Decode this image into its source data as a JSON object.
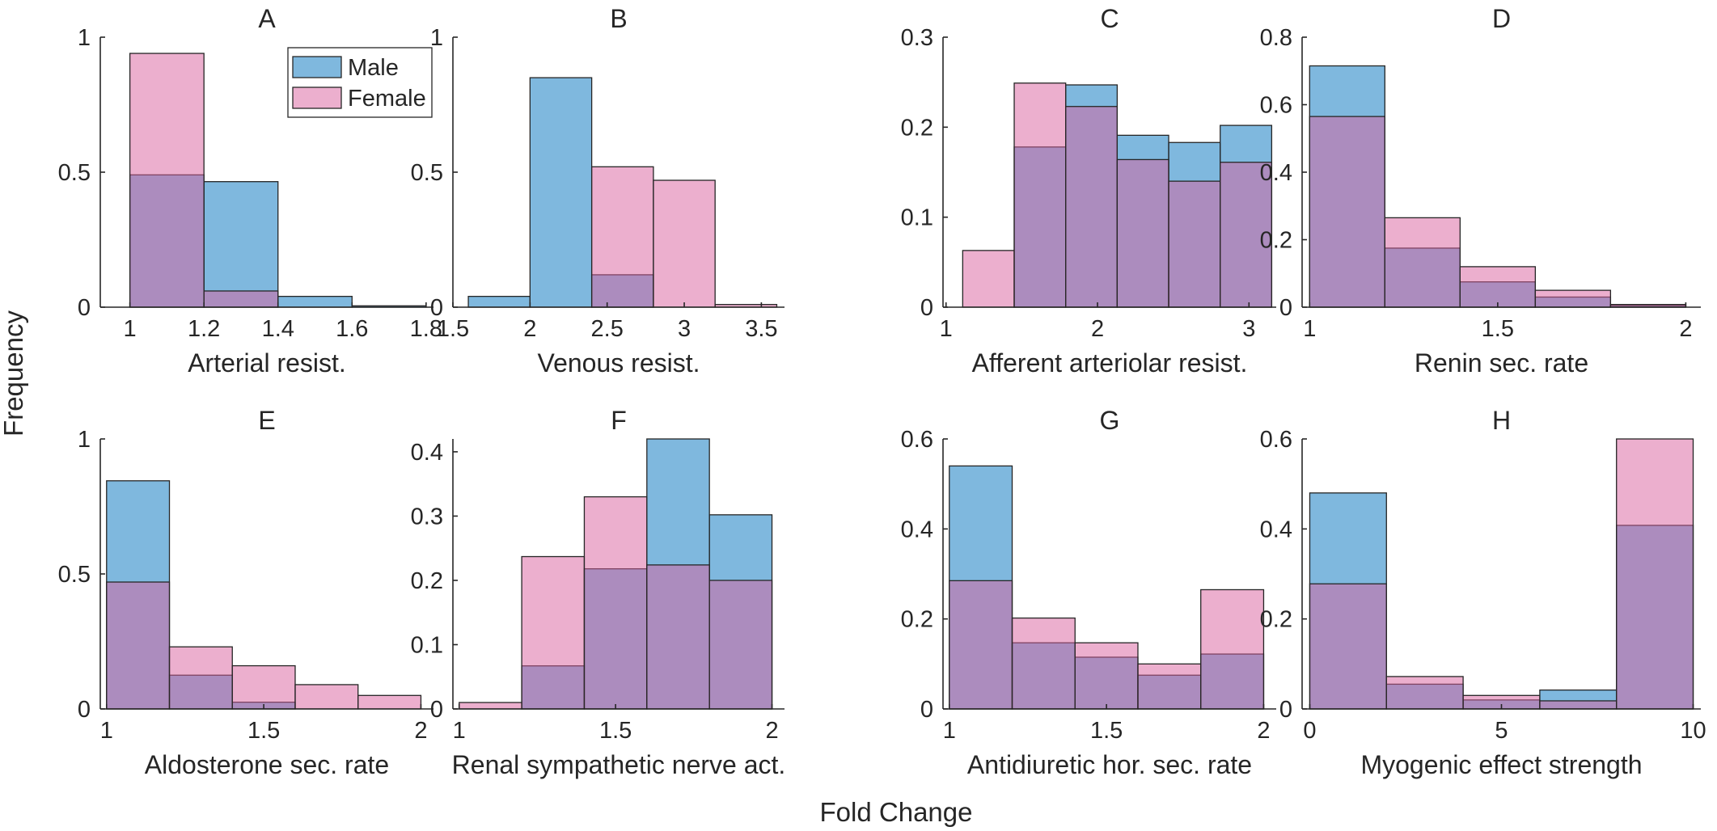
{
  "figure": {
    "ylabel": "Frequency",
    "xlabel": "Fold Change",
    "colors": {
      "Male": "#0072BD",
      "Female": "#D95F9E",
      "alpha": 0.5
    },
    "legend": {
      "entries": [
        "Male",
        "Female"
      ],
      "placement": "top-right of panel A"
    }
  },
  "chart_data": [
    {
      "type": "bar",
      "panel": "A",
      "xlabel": "Arterial resist.",
      "xlim": [
        0.92,
        1.82
      ],
      "ylim": [
        0,
        1
      ],
      "xticks": [
        1,
        1.2,
        1.4,
        1.6,
        1.8
      ],
      "xtick_labels": [
        "1",
        "1.2",
        "1.4",
        "1.6",
        "1.8"
      ],
      "yticks": [
        0,
        0.5,
        1
      ],
      "ytick_labels": [
        "0",
        "0.5",
        "1"
      ],
      "series": [
        {
          "name": "Male",
          "edges": [
            1,
            1.2,
            1.4,
            1.6,
            1.8
          ],
          "values": [
            0.49,
            0.465,
            0.04,
            0.005
          ]
        },
        {
          "name": "Female",
          "edges": [
            1,
            1.2,
            1.4
          ],
          "values": [
            0.94,
            0.06
          ]
        }
      ]
    },
    {
      "type": "bar",
      "panel": "B",
      "xlabel": "Venous resist.",
      "xlim": [
        1.5,
        3.65
      ],
      "ylim": [
        0,
        1
      ],
      "xticks": [
        1.5,
        2,
        2.5,
        3,
        3.5
      ],
      "xtick_labels": [
        "1.5",
        "2",
        "2.5",
        "3",
        "3.5"
      ],
      "yticks": [
        0,
        0.5,
        1
      ],
      "ytick_labels": [
        "0",
        "0.5",
        "1"
      ],
      "series": [
        {
          "name": "Male",
          "edges": [
            1.6,
            2.0,
            2.4,
            2.8
          ],
          "values": [
            0.04,
            0.85,
            0.12
          ]
        },
        {
          "name": "Female",
          "edges": [
            2.4,
            2.8,
            3.2,
            3.6
          ],
          "values": [
            0.52,
            0.47,
            0.01
          ]
        }
      ]
    },
    {
      "type": "bar",
      "panel": "C",
      "xlabel": "Afferent arteriolar resist.",
      "xlim": [
        0.98,
        3.18
      ],
      "ylim": [
        0,
        0.3
      ],
      "xticks": [
        1,
        2,
        3
      ],
      "xtick_labels": [
        "1",
        "2",
        "3"
      ],
      "yticks": [
        0,
        0.1,
        0.2,
        0.3
      ],
      "ytick_labels": [
        "0",
        "0.1",
        "0.2",
        "0.3"
      ],
      "series": [
        {
          "name": "Male",
          "edges": [
            1.45,
            1.79,
            2.13,
            2.47,
            2.81,
            3.15
          ],
          "values": [
            0.178,
            0.247,
            0.191,
            0.183,
            0.202
          ]
        },
        {
          "name": "Female",
          "edges": [
            1.11,
            1.45,
            1.79,
            2.13,
            2.47,
            2.81,
            3.15
          ],
          "values": [
            0.063,
            0.249,
            0.223,
            0.164,
            0.14,
            0.161
          ]
        }
      ]
    },
    {
      "type": "bar",
      "panel": "D",
      "xlabel": "Renin sec. rate",
      "xlim": [
        0.98,
        2.04
      ],
      "ylim": [
        0,
        0.8
      ],
      "xticks": [
        1,
        1.5,
        2
      ],
      "xtick_labels": [
        "1",
        "1.5",
        "2"
      ],
      "yticks": [
        0,
        0.2,
        0.4,
        0.6,
        0.8
      ],
      "ytick_labels": [
        "0",
        "0.2",
        "0.4",
        "0.6",
        "0.8"
      ],
      "series": [
        {
          "name": "Male",
          "edges": [
            1,
            1.2,
            1.4,
            1.6,
            1.8,
            2.0
          ],
          "values": [
            0.715,
            0.175,
            0.075,
            0.03,
            0.005
          ]
        },
        {
          "name": "Female",
          "edges": [
            1,
            1.2,
            1.4,
            1.6,
            1.8,
            2.0
          ],
          "values": [
            0.565,
            0.265,
            0.12,
            0.05,
            0.008
          ]
        }
      ]
    },
    {
      "type": "bar",
      "panel": "E",
      "xlabel": "Aldosterone sec. rate",
      "xlim": [
        0.98,
        2.04
      ],
      "ylim": [
        0,
        1
      ],
      "xticks": [
        1,
        1.5,
        2
      ],
      "xtick_labels": [
        "1",
        "1.5",
        "2"
      ],
      "yticks": [
        0,
        0.5,
        1
      ],
      "ytick_labels": [
        "0",
        "0.5",
        "1"
      ],
      "series": [
        {
          "name": "Male",
          "edges": [
            1,
            1.2,
            1.4,
            1.6
          ],
          "values": [
            0.845,
            0.125,
            0.025
          ]
        },
        {
          "name": "Female",
          "edges": [
            1,
            1.2,
            1.4,
            1.6,
            1.8,
            2.0
          ],
          "values": [
            0.47,
            0.23,
            0.16,
            0.09,
            0.05
          ]
        }
      ]
    },
    {
      "type": "bar",
      "panel": "F",
      "xlabel": "Renal sympathetic nerve act.",
      "xlim": [
        0.98,
        2.04
      ],
      "ylim": [
        0,
        0.42
      ],
      "xticks": [
        1,
        1.5,
        2
      ],
      "xtick_labels": [
        "1",
        "1.5",
        "2"
      ],
      "yticks": [
        0,
        0.1,
        0.2,
        0.3,
        0.4
      ],
      "ytick_labels": [
        "0",
        "0.1",
        "0.2",
        "0.3",
        "0.4"
      ],
      "series": [
        {
          "name": "Male",
          "edges": [
            1.2,
            1.4,
            1.6,
            1.8,
            2.0
          ],
          "values": [
            0.067,
            0.218,
            0.42,
            0.302
          ]
        },
        {
          "name": "Female",
          "edges": [
            1.0,
            1.2,
            1.4,
            1.6,
            1.8,
            2.0
          ],
          "values": [
            0.01,
            0.237,
            0.33,
            0.224,
            0.2
          ]
        }
      ]
    },
    {
      "type": "bar",
      "panel": "G",
      "xlabel": "Antidiuretic hor. sec. rate",
      "xlim": [
        0.98,
        2.04
      ],
      "ylim": [
        0,
        0.6
      ],
      "xticks": [
        1,
        1.5,
        2
      ],
      "xtick_labels": [
        "1",
        "1.5",
        "2"
      ],
      "yticks": [
        0,
        0.2,
        0.4,
        0.6
      ],
      "ytick_labels": [
        "0",
        "0.2",
        "0.4",
        "0.6"
      ],
      "series": [
        {
          "name": "Male",
          "edges": [
            1,
            1.2,
            1.4,
            1.6,
            1.8,
            2.0
          ],
          "values": [
            0.54,
            0.147,
            0.115,
            0.075,
            0.122
          ]
        },
        {
          "name": "Female",
          "edges": [
            1,
            1.2,
            1.4,
            1.6,
            1.8,
            2.0
          ],
          "values": [
            0.285,
            0.202,
            0.147,
            0.1,
            0.265
          ]
        }
      ]
    },
    {
      "type": "bar",
      "panel": "H",
      "xlabel": "Myogenic effect strength",
      "xlim": [
        -0.2,
        10.2
      ],
      "ylim": [
        0,
        0.6
      ],
      "xticks": [
        0,
        5,
        10
      ],
      "xtick_labels": [
        "0",
        "5",
        "10"
      ],
      "yticks": [
        0,
        0.2,
        0.4,
        0.6
      ],
      "ytick_labels": [
        "0",
        "0.2",
        "0.4",
        "0.6"
      ],
      "series": [
        {
          "name": "Male",
          "edges": [
            0,
            2,
            4,
            6,
            8,
            10
          ],
          "values": [
            0.48,
            0.055,
            0.02,
            0.042,
            0.408
          ]
        },
        {
          "name": "Female",
          "edges": [
            0,
            2,
            4,
            6,
            8,
            10
          ],
          "values": [
            0.278,
            0.072,
            0.03,
            0.018,
            0.6
          ]
        }
      ]
    }
  ]
}
